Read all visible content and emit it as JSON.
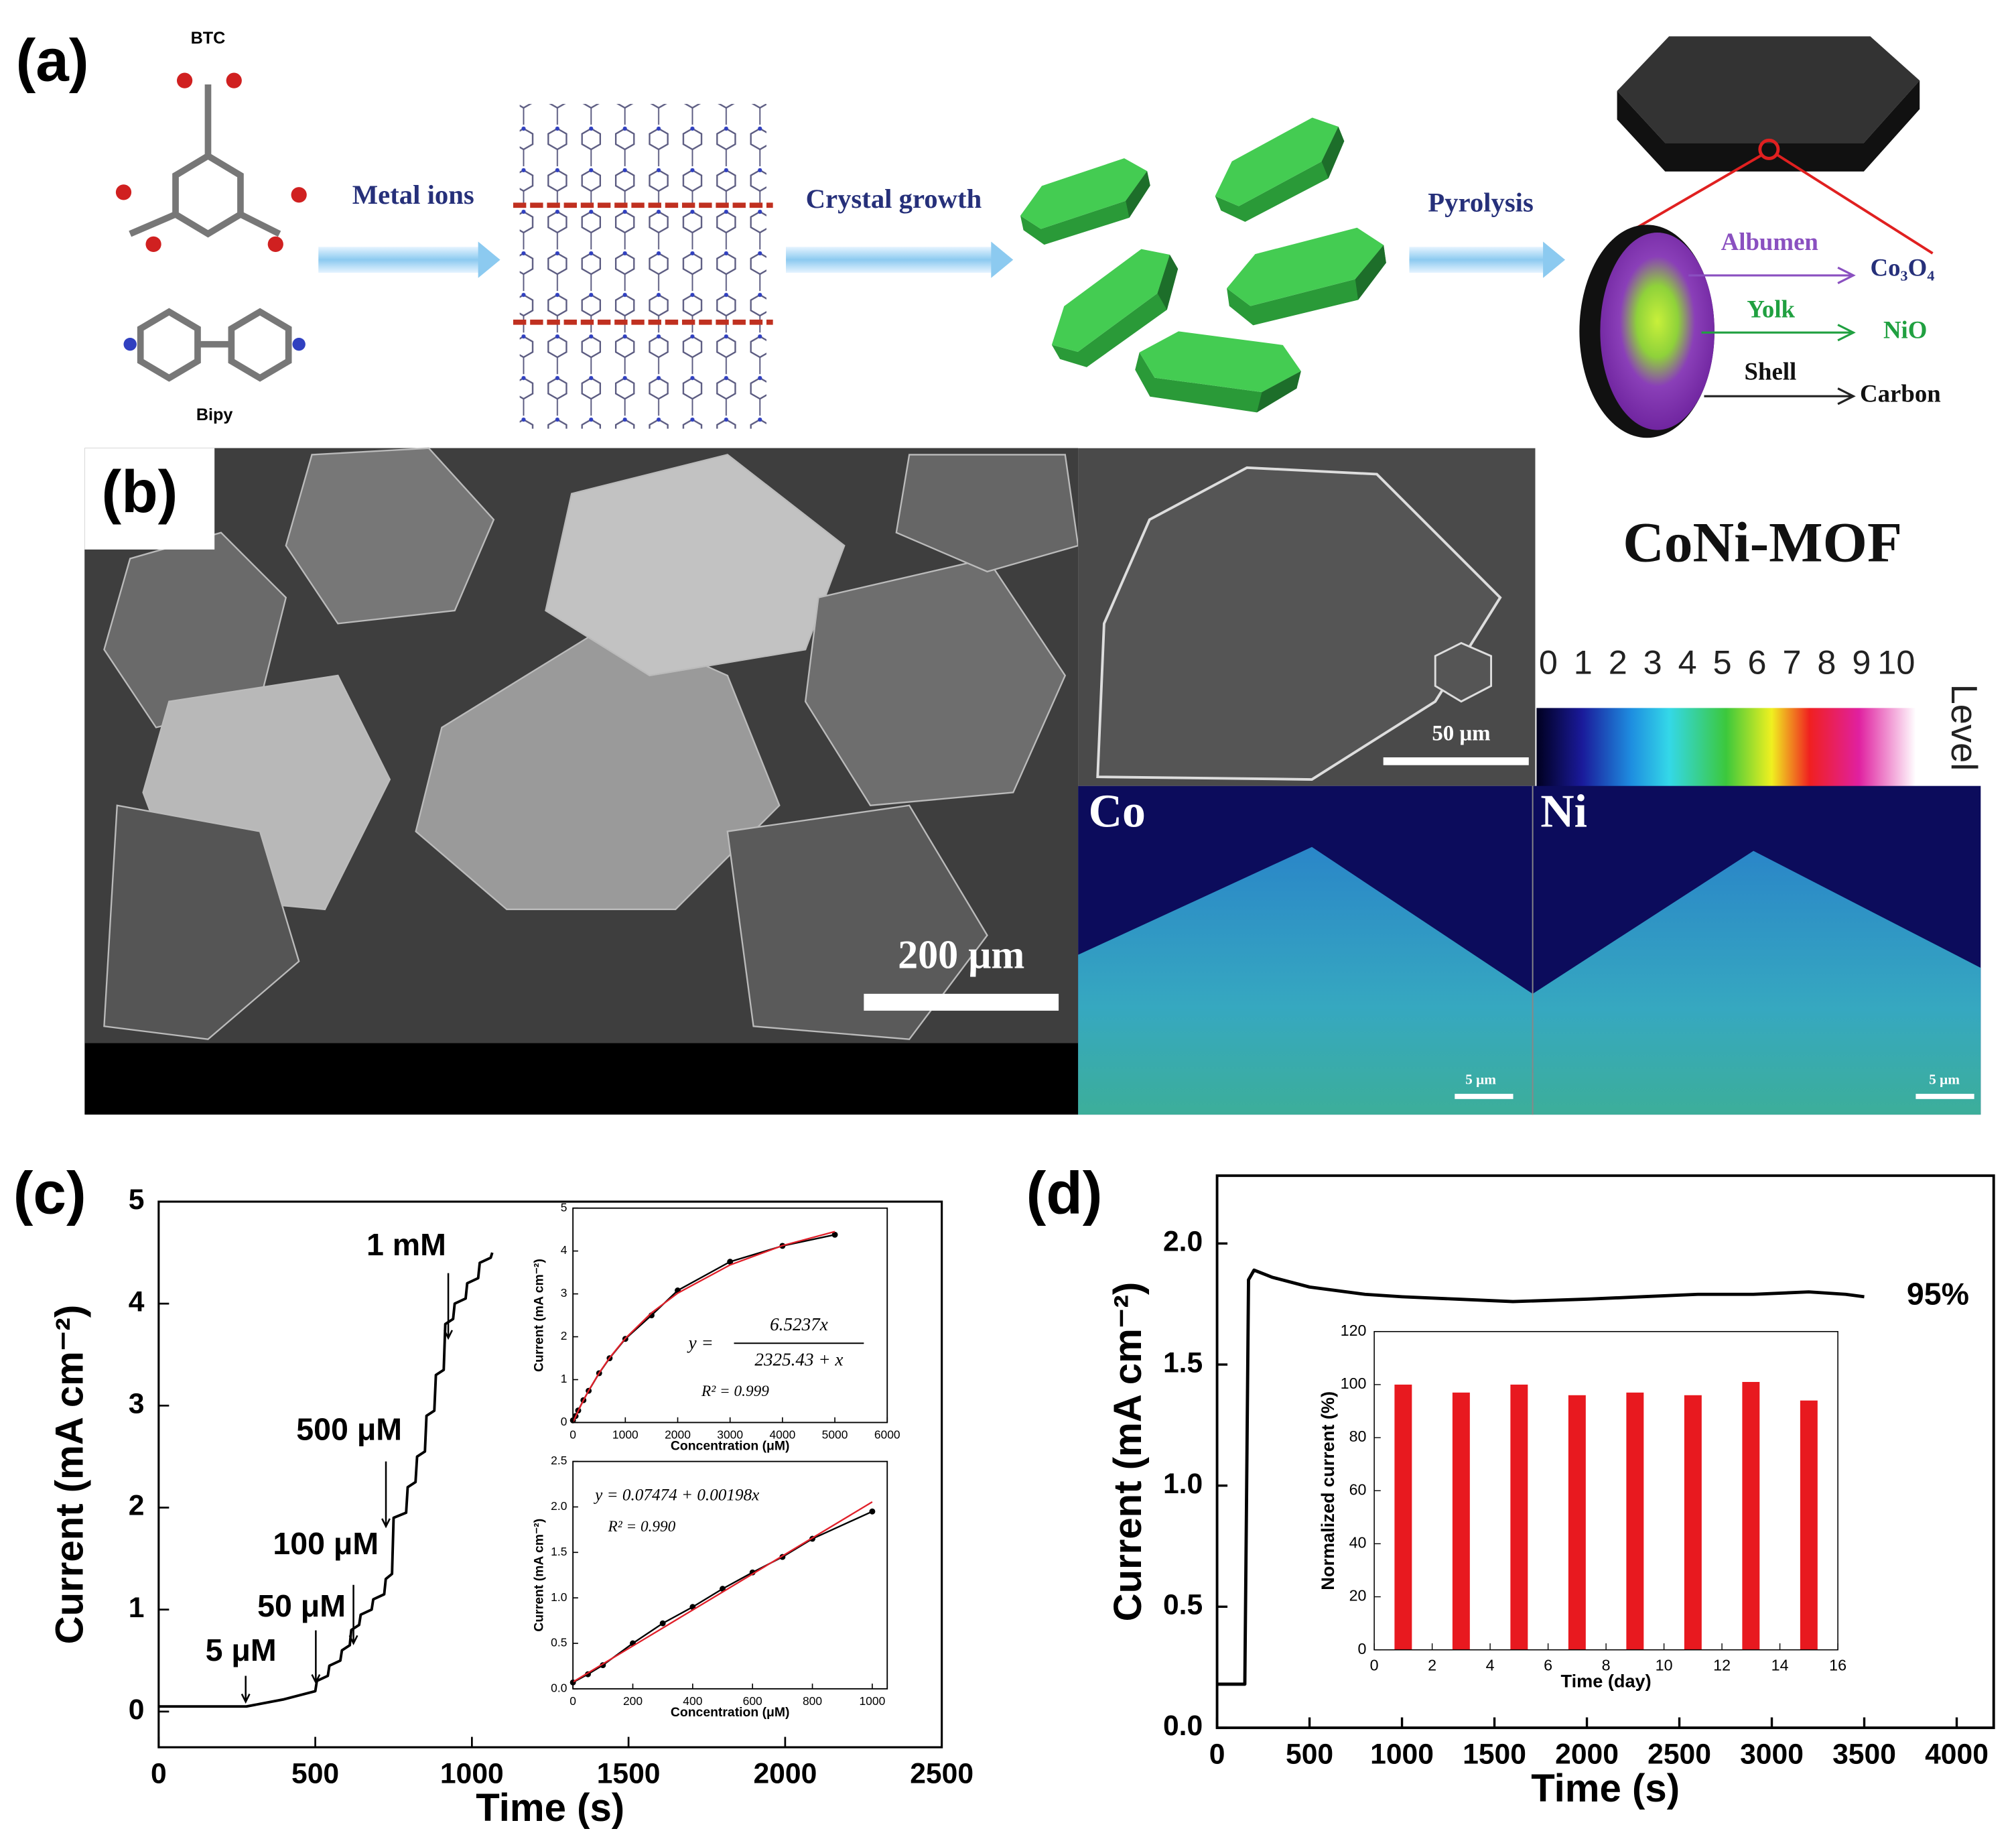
{
  "panel_a": {
    "label": "(a)",
    "btc": "BTC",
    "bipy": "Bipy",
    "step1": "Metal ions",
    "step2": "Crystal growth",
    "step3": "Pyrolysis",
    "albumen": "Albumen",
    "co3o4": "Co₃O₄",
    "yolk": "Yolk",
    "nio": "NiO",
    "shell": "Shell",
    "carbon": "Carbon"
  },
  "panel_b": {
    "label": "(b)",
    "title": "CoNi-MOF",
    "scale_large": "200 μm",
    "scale_medium": "50 μm",
    "map_co": "Co",
    "map_ni": "Ni",
    "scale_co": "5 μm",
    "scale_ni": "5 μm",
    "level_title": "Level",
    "level_ticks": [
      0,
      1,
      2,
      3,
      4,
      5,
      6,
      7,
      8,
      9,
      10
    ]
  },
  "chart_data": [
    {
      "type": "line",
      "label": "(c)",
      "xlabel": "Time (s)",
      "ylabel": "Current (mA cm⁻²)",
      "x": [
        0,
        280,
        400,
        500,
        505,
        540,
        545,
        580,
        585,
        610,
        615,
        640,
        645,
        680,
        685,
        720,
        725,
        745,
        750,
        790,
        795,
        820,
        825,
        850,
        855,
        880,
        885,
        910,
        915,
        940,
        945,
        980,
        985,
        1020,
        1025,
        1060,
        1065
      ],
      "series": [
        {
          "color": "#000000",
          "values": [
            0.05,
            0.05,
            0.12,
            0.2,
            0.3,
            0.35,
            0.45,
            0.5,
            0.6,
            0.65,
            0.8,
            0.85,
            0.95,
            1.0,
            1.1,
            1.15,
            1.3,
            1.35,
            1.9,
            1.95,
            2.2,
            2.25,
            2.5,
            2.55,
            2.9,
            2.95,
            3.3,
            3.35,
            3.8,
            3.85,
            4.0,
            4.05,
            4.2,
            4.25,
            4.4,
            4.45,
            4.5
          ]
        }
      ],
      "xlim": [
        0,
        2500
      ],
      "xticks": [
        0,
        500,
        1000,
        1500,
        2000,
        2500
      ],
      "ylim": [
        -0.35,
        5
      ],
      "yticks": [
        0,
        1,
        2,
        3,
        4,
        5
      ],
      "annotations": [
        "5 μM",
        "50 μM",
        "100 μM",
        "500 μM",
        "1 mM"
      ]
    },
    {
      "type": "scatter",
      "xlabel": "Concentration (μM)",
      "ylabel": "Current (mA cm⁻²)",
      "x": [
        0,
        50,
        100,
        200,
        300,
        500,
        700,
        1000,
        1500,
        2000,
        3000,
        4000,
        5000
      ],
      "series": [
        {
          "color": "#000000",
          "mode": "markers+line",
          "values": [
            0.05,
            0.15,
            0.28,
            0.52,
            0.74,
            1.15,
            1.5,
            1.95,
            2.5,
            3.08,
            3.75,
            4.12,
            4.38
          ]
        },
        {
          "color": "#e0202a",
          "mode": "line",
          "values": [
            0,
            0.137,
            0.269,
            0.517,
            0.745,
            1.154,
            1.509,
            1.962,
            2.558,
            3.017,
            3.675,
            4.126,
            4.453
          ]
        }
      ],
      "xlim": [
        0,
        6000
      ],
      "xticks": [
        0,
        1000,
        2000,
        3000,
        4000,
        5000,
        6000
      ],
      "ylim": [
        0,
        5
      ],
      "yticks": [
        0,
        1,
        2,
        3,
        4,
        5
      ],
      "equation": {
        "lhs": "y =",
        "numerator": "6.5237x",
        "denominator": "2325.43 + x",
        "r2": "R² = 0.999"
      }
    },
    {
      "type": "scatter",
      "xlabel": "Concentration (μM)",
      "ylabel": "Current (mA cm⁻²)",
      "x": [
        0,
        50,
        100,
        200,
        300,
        400,
        500,
        600,
        700,
        800,
        1000
      ],
      "series": [
        {
          "color": "#000000",
          "mode": "markers+line",
          "values": [
            0.07,
            0.16,
            0.26,
            0.5,
            0.72,
            0.9,
            1.1,
            1.28,
            1.45,
            1.65,
            1.95
          ]
        },
        {
          "color": "#e0202a",
          "mode": "line",
          "values": [
            0.075,
            0.174,
            0.273,
            0.471,
            0.669,
            0.867,
            1.065,
            1.263,
            1.461,
            1.659,
            2.055
          ]
        }
      ],
      "xlim": [
        0,
        1050
      ],
      "xticks": [
        0,
        200,
        400,
        600,
        800,
        1000
      ],
      "ylim": [
        0,
        2.5
      ],
      "yticks": [
        {
          "value": 0,
          "label": "0.0"
        },
        0.5,
        {
          "value": 1,
          "label": "1.0"
        },
        1.5,
        {
          "value": 2,
          "label": "2.0"
        },
        2.5
      ],
      "equation": {
        "text": "y = 0.07474 + 0.00198x",
        "r2": "R² = 0.990"
      }
    },
    {
      "type": "line",
      "label": "(d)",
      "xlabel": "Time (s)",
      "ylabel": "Current (mA cm⁻²)",
      "x": [
        0,
        100,
        150,
        160,
        170,
        200,
        300,
        500,
        800,
        1000,
        1300,
        1600,
        2000,
        2300,
        2600,
        2900,
        3200,
        3400,
        3500
      ],
      "series": [
        {
          "color": "#000000",
          "values": [
            0.18,
            0.18,
            0.18,
            1.0,
            1.85,
            1.89,
            1.86,
            1.82,
            1.79,
            1.78,
            1.77,
            1.76,
            1.77,
            1.78,
            1.79,
            1.79,
            1.8,
            1.79,
            1.78
          ]
        }
      ],
      "xlim": [
        0,
        4200
      ],
      "xticks": [
        0,
        500,
        1000,
        1500,
        2000,
        2500,
        3000,
        3500,
        4000
      ],
      "ylim": [
        0,
        2.28
      ],
      "yticks": [
        {
          "value": 0,
          "label": "0.0"
        },
        0.5,
        {
          "value": 1,
          "label": "1.0"
        },
        1.5,
        {
          "value": 2,
          "label": "2.0"
        }
      ],
      "annotations": [
        "95%"
      ]
    },
    {
      "type": "bar",
      "xlabel": "Time (day)",
      "ylabel": "Normalized current (%)",
      "x": [
        1,
        3,
        5,
        7,
        9,
        11,
        13,
        15
      ],
      "values": [
        100,
        97,
        100,
        96,
        97,
        96,
        101,
        94
      ],
      "color": "#e8191f",
      "xlim": [
        0,
        16
      ],
      "xticks": [
        0,
        2,
        4,
        6,
        8,
        10,
        12,
        14,
        16
      ],
      "ylim": [
        0,
        120
      ],
      "yticks": [
        0,
        20,
        40,
        60,
        80,
        100,
        120
      ]
    }
  ]
}
